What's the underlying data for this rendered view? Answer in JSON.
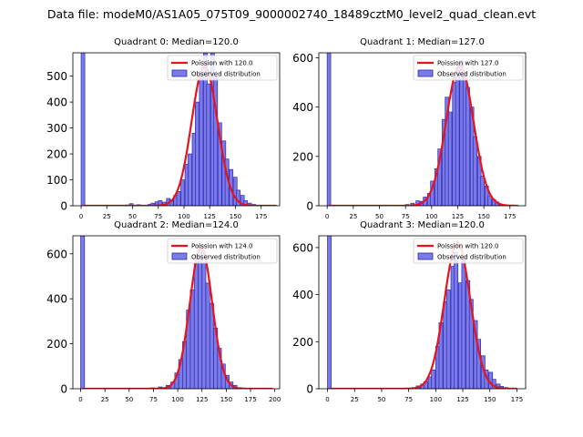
{
  "suptitle": "Data file: modeM0/AS1A05_075T09_9000002740_18489cztM0_level2_quad_clean.evt",
  "chart_data": [
    {
      "type": "bar",
      "title": "Quadrant 0: Median=120.0",
      "xlim": [
        -8,
        193
      ],
      "ylim": [
        0,
        590
      ],
      "xticks": [
        0,
        25,
        50,
        75,
        100,
        125,
        150,
        175
      ],
      "yticks": [
        0,
        100,
        200,
        300,
        400,
        500
      ],
      "bin_width": 3.6,
      "bins": [
        [
          0,
          590
        ],
        [
          43,
          3
        ],
        [
          47,
          8
        ],
        [
          54,
          4
        ],
        [
          65,
          5
        ],
        [
          68,
          10
        ],
        [
          72,
          15
        ],
        [
          75,
          20
        ],
        [
          79,
          14
        ],
        [
          83,
          28
        ],
        [
          86,
          22
        ],
        [
          90,
          40
        ],
        [
          93,
          55
        ],
        [
          97,
          100
        ],
        [
          101,
          160
        ],
        [
          104,
          200
        ],
        [
          108,
          280
        ],
        [
          111,
          400
        ],
        [
          115,
          510
        ],
        [
          119,
          590
        ],
        [
          122,
          470
        ],
        [
          126,
          600
        ],
        [
          129,
          500
        ],
        [
          133,
          320
        ],
        [
          137,
          250
        ],
        [
          140,
          180
        ],
        [
          144,
          140
        ],
        [
          148,
          110
        ],
        [
          151,
          60
        ],
        [
          155,
          40
        ],
        [
          158,
          20
        ],
        [
          162,
          10
        ],
        [
          166,
          5
        ]
      ],
      "poisson": {
        "mean": 120.0,
        "peak": 540,
        "sigma": 12.5
      },
      "line_x": [
        2,
        190
      ],
      "legend": {
        "location": "top-right",
        "line_label": "Poission with 120.0",
        "bar_label": "Observed distribution"
      }
    },
    {
      "type": "bar",
      "title": "Quadrant 1: Median=127.0",
      "xlim": [
        -8,
        190
      ],
      "ylim": [
        0,
        620
      ],
      "xticks": [
        0,
        25,
        50,
        75,
        100,
        125,
        150,
        175
      ],
      "yticks": [
        0,
        200,
        400,
        600
      ],
      "bin_width": 3.4,
      "bins": [
        [
          0,
          620
        ],
        [
          75,
          5
        ],
        [
          80,
          10
        ],
        [
          85,
          20
        ],
        [
          89,
          18
        ],
        [
          92,
          35
        ],
        [
          96,
          50
        ],
        [
          99,
          100
        ],
        [
          103,
          150
        ],
        [
          106,
          230
        ],
        [
          110,
          350
        ],
        [
          113,
          440
        ],
        [
          116,
          380
        ],
        [
          120,
          500
        ],
        [
          123,
          560
        ],
        [
          127,
          590
        ],
        [
          130,
          520
        ],
        [
          133,
          480
        ],
        [
          137,
          400
        ],
        [
          140,
          280
        ],
        [
          144,
          200
        ],
        [
          147,
          120
        ],
        [
          151,
          80
        ],
        [
          154,
          40
        ],
        [
          158,
          25
        ],
        [
          161,
          15
        ],
        [
          165,
          5
        ]
      ],
      "poisson": {
        "mean": 127.0,
        "peak": 570,
        "sigma": 13
      },
      "line_x": [
        2,
        183
      ],
      "legend": {
        "location": "top-right",
        "line_label": "Poission with 127.0",
        "bar_label": "Observed distribution"
      }
    },
    {
      "type": "bar",
      "title": "Quadrant 2: Median=124.0",
      "xlim": [
        -8,
        205
      ],
      "ylim": [
        0,
        680
      ],
      "xticks": [
        0,
        25,
        50,
        75,
        100,
        125,
        150,
        175,
        200
      ],
      "yticks": [
        0,
        200,
        400,
        600
      ],
      "bin_width": 4.0,
      "bins": [
        [
          0,
          680
        ],
        [
          72,
          4
        ],
        [
          80,
          8
        ],
        [
          88,
          15
        ],
        [
          93,
          30
        ],
        [
          97,
          70
        ],
        [
          101,
          130
        ],
        [
          105,
          210
        ],
        [
          109,
          350
        ],
        [
          113,
          440
        ],
        [
          117,
          560
        ],
        [
          121,
          640
        ],
        [
          125,
          560
        ],
        [
          129,
          470
        ],
        [
          133,
          380
        ],
        [
          137,
          270
        ],
        [
          141,
          180
        ],
        [
          145,
          110
        ],
        [
          149,
          60
        ],
        [
          153,
          30
        ],
        [
          157,
          15
        ],
        [
          162,
          5
        ]
      ],
      "poisson": {
        "mean": 124.0,
        "peak": 630,
        "sigma": 11.5
      },
      "line_x": [
        2,
        198
      ],
      "legend": {
        "location": "top-right",
        "line_label": "Poission with 124.0",
        "bar_label": "Observed distribution"
      }
    },
    {
      "type": "bar",
      "title": "Quadrant 3: Median=120.0",
      "xlim": [
        -8,
        183
      ],
      "ylim": [
        0,
        650
      ],
      "xticks": [
        0,
        25,
        50,
        75,
        100,
        125,
        150,
        175
      ],
      "yticks": [
        0,
        200,
        400,
        600
      ],
      "bin_width": 3.5,
      "bins": [
        [
          0,
          650
        ],
        [
          78,
          5
        ],
        [
          82,
          12
        ],
        [
          86,
          20
        ],
        [
          89,
          30
        ],
        [
          93,
          50
        ],
        [
          96,
          80
        ],
        [
          100,
          180
        ],
        [
          103,
          280
        ],
        [
          107,
          370
        ],
        [
          110,
          420
        ],
        [
          114,
          520
        ],
        [
          117,
          580
        ],
        [
          121,
          450
        ],
        [
          124,
          560
        ],
        [
          128,
          460
        ],
        [
          131,
          380
        ],
        [
          135,
          290
        ],
        [
          138,
          210
        ],
        [
          142,
          140
        ],
        [
          145,
          80
        ],
        [
          149,
          70
        ],
        [
          152,
          40
        ],
        [
          156,
          20
        ],
        [
          159,
          10
        ],
        [
          163,
          5
        ]
      ],
      "poisson": {
        "mean": 120.0,
        "peak": 620,
        "sigma": 12
      },
      "line_x": [
        2,
        175
      ],
      "legend": {
        "location": "top-right",
        "line_label": "Poission with 120.0",
        "bar_label": "Observed distribution"
      }
    }
  ]
}
